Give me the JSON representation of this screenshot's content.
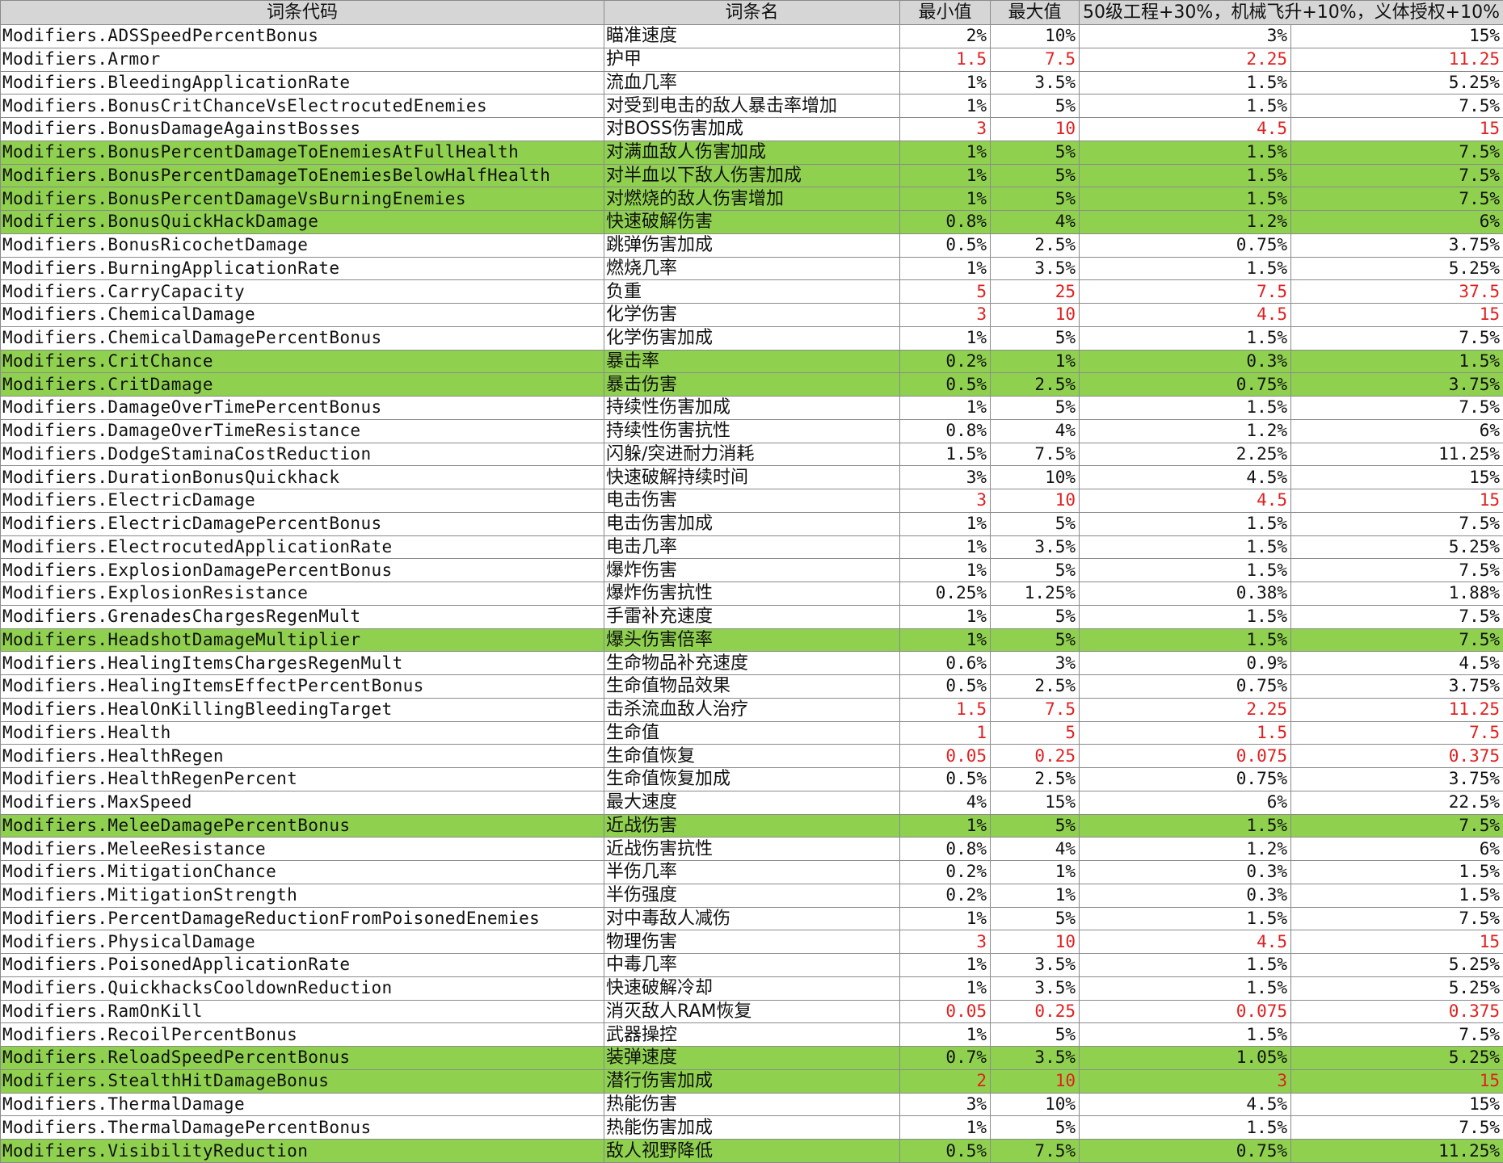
{
  "colors": {
    "header_bg": "#d6d6d6",
    "highlight": "#8fd14f",
    "red_value": "#e02020",
    "grid": "#8a8a8a"
  },
  "headers": [
    "词条代码",
    "词条名",
    "最小值",
    "最大值",
    "50级工程+30%，机械飞升+10%，义体授权+10%",
    ""
  ],
  "rows": [
    {
      "code": "Modifiers.ADSSpeedPercentBonus",
      "name": "瞄准速度",
      "min": "2%",
      "max": "10%",
      "v1": "3%",
      "v2": "15%",
      "hl": false,
      "red": false
    },
    {
      "code": "Modifiers.Armor",
      "name": "护甲",
      "min": "1.5",
      "max": "7.5",
      "v1": "2.25",
      "v2": "11.25",
      "hl": false,
      "red": true
    },
    {
      "code": "Modifiers.BleedingApplicationRate",
      "name": "流血几率",
      "min": "1%",
      "max": "3.5%",
      "v1": "1.5%",
      "v2": "5.25%",
      "hl": false,
      "red": false
    },
    {
      "code": "Modifiers.BonusCritChanceVsElectrocutedEnemies",
      "name": "对受到电击的敌人暴击率增加",
      "min": "1%",
      "max": "5%",
      "v1": "1.5%",
      "v2": "7.5%",
      "hl": false,
      "red": false
    },
    {
      "code": "Modifiers.BonusDamageAgainstBosses",
      "name": "对BOSS伤害加成",
      "min": "3",
      "max": "10",
      "v1": "4.5",
      "v2": "15",
      "hl": false,
      "red": true
    },
    {
      "code": "Modifiers.BonusPercentDamageToEnemiesAtFullHealth",
      "name": "对满血敌人伤害加成",
      "min": "1%",
      "max": "5%",
      "v1": "1.5%",
      "v2": "7.5%",
      "hl": true,
      "red": false
    },
    {
      "code": "Modifiers.BonusPercentDamageToEnemiesBelowHalfHealth",
      "name": "对半血以下敌人伤害加成",
      "min": "1%",
      "max": "5%",
      "v1": "1.5%",
      "v2": "7.5%",
      "hl": true,
      "red": false
    },
    {
      "code": "Modifiers.BonusPercentDamageVsBurningEnemies",
      "name": "对燃烧的敌人伤害增加",
      "min": "1%",
      "max": "5%",
      "v1": "1.5%",
      "v2": "7.5%",
      "hl": true,
      "red": false
    },
    {
      "code": "Modifiers.BonusQuickHackDamage",
      "name": "快速破解伤害",
      "min": "0.8%",
      "max": "4%",
      "v1": "1.2%",
      "v2": "6%",
      "hl": true,
      "red": false
    },
    {
      "code": "Modifiers.BonusRicochetDamage",
      "name": "跳弹伤害加成",
      "min": "0.5%",
      "max": "2.5%",
      "v1": "0.75%",
      "v2": "3.75%",
      "hl": false,
      "red": false
    },
    {
      "code": "Modifiers.BurningApplicationRate",
      "name": "燃烧几率",
      "min": "1%",
      "max": "3.5%",
      "v1": "1.5%",
      "v2": "5.25%",
      "hl": false,
      "red": false
    },
    {
      "code": "Modifiers.CarryCapacity",
      "name": "负重",
      "min": "5",
      "max": "25",
      "v1": "7.5",
      "v2": "37.5",
      "hl": false,
      "red": true
    },
    {
      "code": "Modifiers.ChemicalDamage",
      "name": "化学伤害",
      "min": "3",
      "max": "10",
      "v1": "4.5",
      "v2": "15",
      "hl": false,
      "red": true
    },
    {
      "code": "Modifiers.ChemicalDamagePercentBonus",
      "name": "化学伤害加成",
      "min": "1%",
      "max": "5%",
      "v1": "1.5%",
      "v2": "7.5%",
      "hl": false,
      "red": false
    },
    {
      "code": "Modifiers.CritChance",
      "name": "暴击率",
      "min": "0.2%",
      "max": "1%",
      "v1": "0.3%",
      "v2": "1.5%",
      "hl": true,
      "red": false
    },
    {
      "code": "Modifiers.CritDamage",
      "name": "暴击伤害",
      "min": "0.5%",
      "max": "2.5%",
      "v1": "0.75%",
      "v2": "3.75%",
      "hl": true,
      "red": false
    },
    {
      "code": "Modifiers.DamageOverTimePercentBonus",
      "name": "持续性伤害加成",
      "min": "1%",
      "max": "5%",
      "v1": "1.5%",
      "v2": "7.5%",
      "hl": false,
      "red": false
    },
    {
      "code": "Modifiers.DamageOverTimeResistance",
      "name": "持续性伤害抗性",
      "min": "0.8%",
      "max": "4%",
      "v1": "1.2%",
      "v2": "6%",
      "hl": false,
      "red": false
    },
    {
      "code": "Modifiers.DodgeStaminaCostReduction",
      "name": "闪躲/突进耐力消耗",
      "min": "1.5%",
      "max": "7.5%",
      "v1": "2.25%",
      "v2": "11.25%",
      "hl": false,
      "red": false
    },
    {
      "code": "Modifiers.DurationBonusQuickhack",
      "name": "快速破解持续时间",
      "min": "3%",
      "max": "10%",
      "v1": "4.5%",
      "v2": "15%",
      "hl": false,
      "red": false
    },
    {
      "code": "Modifiers.ElectricDamage",
      "name": "电击伤害",
      "min": "3",
      "max": "10",
      "v1": "4.5",
      "v2": "15",
      "hl": false,
      "red": true
    },
    {
      "code": "Modifiers.ElectricDamagePercentBonus",
      "name": "电击伤害加成",
      "min": "1%",
      "max": "5%",
      "v1": "1.5%",
      "v2": "7.5%",
      "hl": false,
      "red": false
    },
    {
      "code": "Modifiers.ElectrocutedApplicationRate",
      "name": "电击几率",
      "min": "1%",
      "max": "3.5%",
      "v1": "1.5%",
      "v2": "5.25%",
      "hl": false,
      "red": false
    },
    {
      "code": "Modifiers.ExplosionDamagePercentBonus",
      "name": "爆炸伤害",
      "min": "1%",
      "max": "5%",
      "v1": "1.5%",
      "v2": "7.5%",
      "hl": false,
      "red": false
    },
    {
      "code": "Modifiers.ExplosionResistance",
      "name": "爆炸伤害抗性",
      "min": "0.25%",
      "max": "1.25%",
      "v1": "0.38%",
      "v2": "1.88%",
      "hl": false,
      "red": false
    },
    {
      "code": "Modifiers.GrenadesChargesRegenMult",
      "name": "手雷补充速度",
      "min": "1%",
      "max": "5%",
      "v1": "1.5%",
      "v2": "7.5%",
      "hl": false,
      "red": false
    },
    {
      "code": "Modifiers.HeadshotDamageMultiplier",
      "name": "爆头伤害倍率",
      "min": "1%",
      "max": "5%",
      "v1": "1.5%",
      "v2": "7.5%",
      "hl": true,
      "red": false
    },
    {
      "code": "Modifiers.HealingItemsChargesRegenMult",
      "name": "生命物品补充速度",
      "min": "0.6%",
      "max": "3%",
      "v1": "0.9%",
      "v2": "4.5%",
      "hl": false,
      "red": false
    },
    {
      "code": "Modifiers.HealingItemsEffectPercentBonus",
      "name": "生命值物品效果",
      "min": "0.5%",
      "max": "2.5%",
      "v1": "0.75%",
      "v2": "3.75%",
      "hl": false,
      "red": false
    },
    {
      "code": "Modifiers.HealOnKillingBleedingTarget",
      "name": "击杀流血敌人治疗",
      "min": "1.5",
      "max": "7.5",
      "v1": "2.25",
      "v2": "11.25",
      "hl": false,
      "red": true
    },
    {
      "code": "Modifiers.Health",
      "name": "生命值",
      "min": "1",
      "max": "5",
      "v1": "1.5",
      "v2": "7.5",
      "hl": false,
      "red": true
    },
    {
      "code": "Modifiers.HealthRegen",
      "name": "生命值恢复",
      "min": "0.05",
      "max": "0.25",
      "v1": "0.075",
      "v2": "0.375",
      "hl": false,
      "red": true
    },
    {
      "code": "Modifiers.HealthRegenPercent",
      "name": "生命值恢复加成",
      "min": "0.5%",
      "max": "2.5%",
      "v1": "0.75%",
      "v2": "3.75%",
      "hl": false,
      "red": false
    },
    {
      "code": "Modifiers.MaxSpeed",
      "name": "最大速度",
      "min": "4%",
      "max": "15%",
      "v1": "6%",
      "v2": "22.5%",
      "hl": false,
      "red": false
    },
    {
      "code": "Modifiers.MeleeDamagePercentBonus",
      "name": "近战伤害",
      "min": "1%",
      "max": "5%",
      "v1": "1.5%",
      "v2": "7.5%",
      "hl": true,
      "red": false
    },
    {
      "code": "Modifiers.MeleeResistance",
      "name": "近战伤害抗性",
      "min": "0.8%",
      "max": "4%",
      "v1": "1.2%",
      "v2": "6%",
      "hl": false,
      "red": false
    },
    {
      "code": "Modifiers.MitigationChance",
      "name": "半伤几率",
      "min": "0.2%",
      "max": "1%",
      "v1": "0.3%",
      "v2": "1.5%",
      "hl": false,
      "red": false
    },
    {
      "code": "Modifiers.MitigationStrength",
      "name": "半伤强度",
      "min": "0.2%",
      "max": "1%",
      "v1": "0.3%",
      "v2": "1.5%",
      "hl": false,
      "red": false
    },
    {
      "code": "Modifiers.PercentDamageReductionFromPoisonedEnemies",
      "name": "对中毒敌人减伤",
      "min": "1%",
      "max": "5%",
      "v1": "1.5%",
      "v2": "7.5%",
      "hl": false,
      "red": false
    },
    {
      "code": "Modifiers.PhysicalDamage",
      "name": "物理伤害",
      "min": "3",
      "max": "10",
      "v1": "4.5",
      "v2": "15",
      "hl": false,
      "red": true
    },
    {
      "code": "Modifiers.PoisonedApplicationRate",
      "name": "中毒几率",
      "min": "1%",
      "max": "3.5%",
      "v1": "1.5%",
      "v2": "5.25%",
      "hl": false,
      "red": false
    },
    {
      "code": "Modifiers.QuickhacksCooldownReduction",
      "name": "快速破解冷却",
      "min": "1%",
      "max": "3.5%",
      "v1": "1.5%",
      "v2": "5.25%",
      "hl": false,
      "red": false
    },
    {
      "code": "Modifiers.RamOnKill",
      "name": "消灭敌人RAM恢复",
      "min": "0.05",
      "max": "0.25",
      "v1": "0.075",
      "v2": "0.375",
      "hl": false,
      "red": true
    },
    {
      "code": "Modifiers.RecoilPercentBonus",
      "name": "武器操控",
      "min": "1%",
      "max": "5%",
      "v1": "1.5%",
      "v2": "7.5%",
      "hl": false,
      "red": false
    },
    {
      "code": "Modifiers.ReloadSpeedPercentBonus",
      "name": "装弹速度",
      "min": "0.7%",
      "max": "3.5%",
      "v1": "1.05%",
      "v2": "5.25%",
      "hl": true,
      "red": false
    },
    {
      "code": "Modifiers.StealthHitDamageBonus",
      "name": "潜行伤害加成",
      "min": "2",
      "max": "10",
      "v1": "3",
      "v2": "15",
      "hl": true,
      "red": true
    },
    {
      "code": "Modifiers.ThermalDamage",
      "name": "热能伤害",
      "min": "3%",
      "max": "10%",
      "v1": "4.5%",
      "v2": "15%",
      "hl": false,
      "red": false
    },
    {
      "code": "Modifiers.ThermalDamagePercentBonus",
      "name": "热能伤害加成",
      "min": "1%",
      "max": "5%",
      "v1": "1.5%",
      "v2": "7.5%",
      "hl": false,
      "red": false
    },
    {
      "code": "Modifiers.VisibilityReduction",
      "name": "敌人视野降低",
      "min": "0.5%",
      "max": "7.5%",
      "v1": "0.75%",
      "v2": "11.25%",
      "hl": true,
      "red": false
    }
  ]
}
